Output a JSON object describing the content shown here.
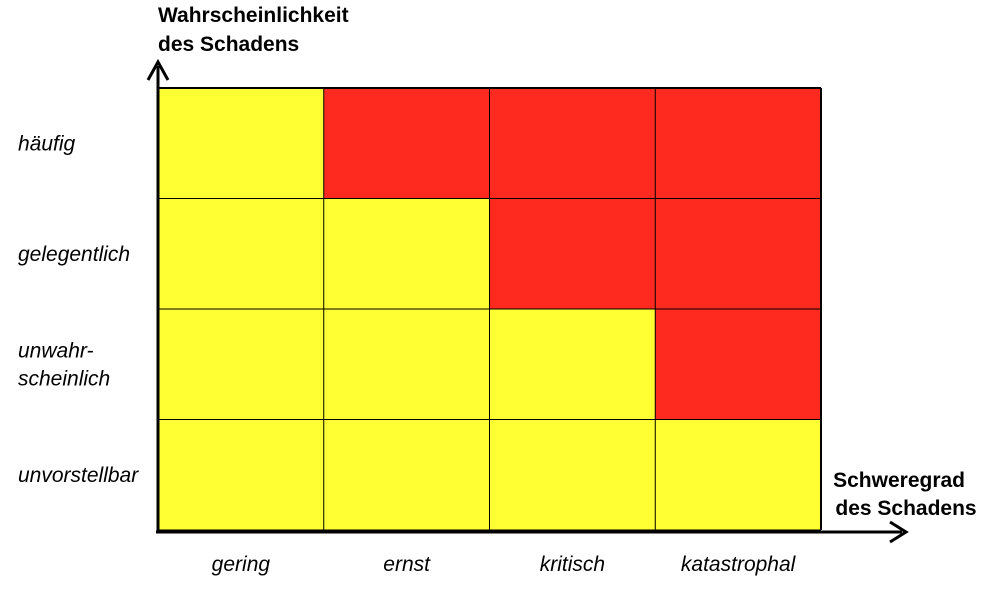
{
  "chart_data": {
    "type": "heatmap",
    "title": "",
    "ylabel": [
      "Wahrscheinlichkeit",
      "des Schadens"
    ],
    "xlabel": [
      "Schweregrad",
      "des Schadens"
    ],
    "x_categories": [
      "gering",
      "ernst",
      "kritisch",
      "katastrophal"
    ],
    "y_categories": [
      [
        "häufig"
      ],
      [
        "gelegentlich"
      ],
      [
        "unwahr-",
        "scheinlich"
      ],
      [
        "unvorstellbar"
      ]
    ],
    "legend": "none",
    "grid": true,
    "colors": {
      "low": "#FFFF33",
      "high": "#FF2A1F",
      "grid": "#000000"
    },
    "cells": [
      [
        "low",
        "high",
        "high",
        "high"
      ],
      [
        "low",
        "low",
        "high",
        "high"
      ],
      [
        "low",
        "low",
        "low",
        "high"
      ],
      [
        "low",
        "low",
        "low",
        "low"
      ]
    ]
  }
}
